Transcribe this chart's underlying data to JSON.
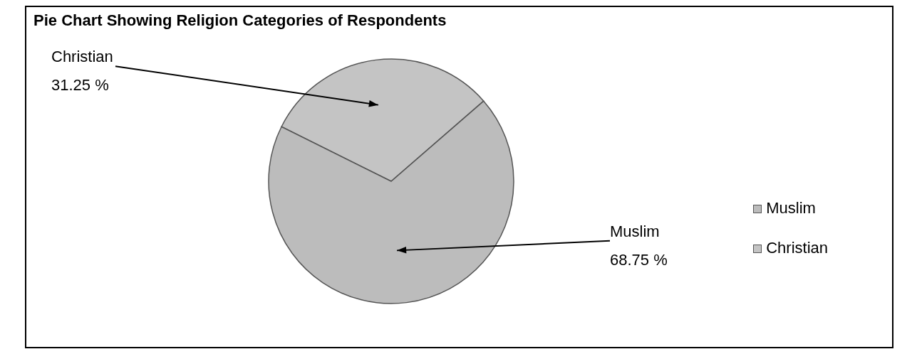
{
  "chart_data": {
    "type": "pie",
    "title": "Pie Chart Showing Religion Categories of Respondents",
    "categories": [
      "Christian",
      "Muslim"
    ],
    "values": [
      31.25,
      68.75
    ],
    "value_labels": [
      "31.25 %",
      "68.75 %"
    ],
    "colors": [
      "#c4c4c4",
      "#bcbcbc"
    ],
    "legend": "right"
  }
}
